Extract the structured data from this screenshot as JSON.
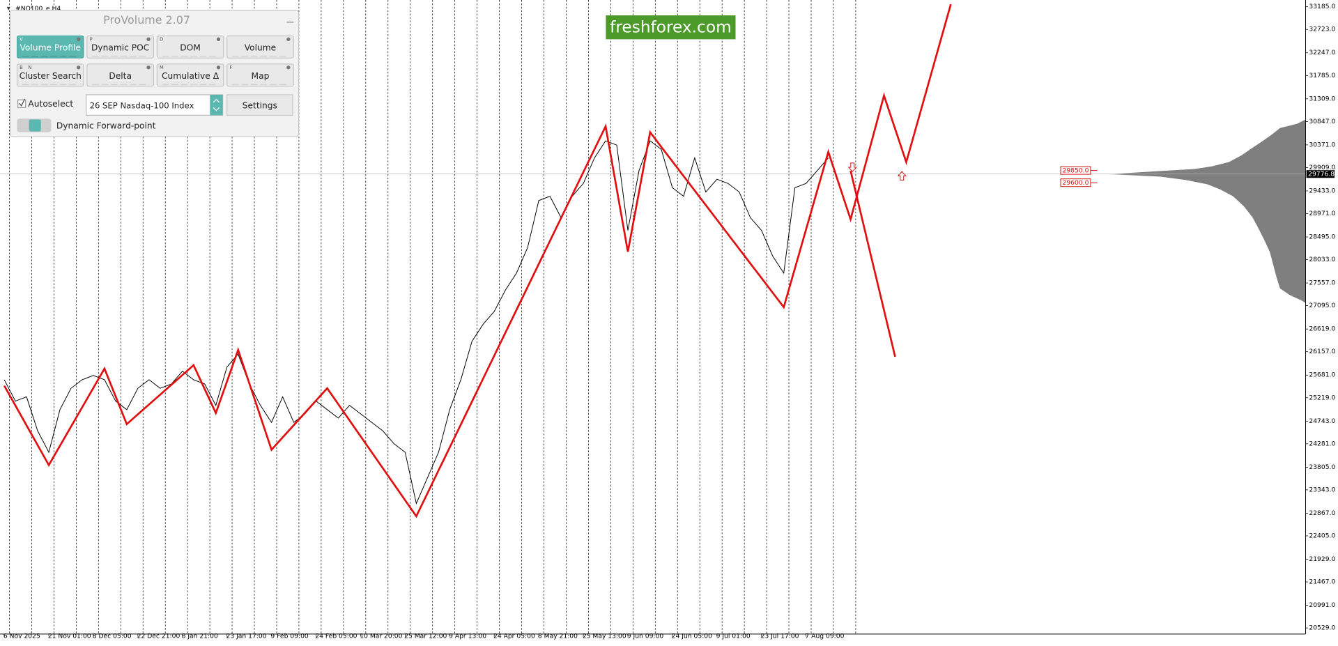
{
  "window": {
    "symbol": "#NQ100_e,H4"
  },
  "watermark": "freshforex.com",
  "panel": {
    "title": "ProVolume 2.07",
    "buttons": [
      {
        "label": "Volume Profile",
        "keys": [
          "V"
        ]
      },
      {
        "label": "Dynamic POC",
        "keys": [
          "P"
        ]
      },
      {
        "label": "DOM",
        "keys": [
          "D"
        ]
      },
      {
        "label": "Volume"
      },
      {
        "label": "Cluster Search",
        "keys": [
          "B",
          "N"
        ]
      },
      {
        "label": "Delta"
      },
      {
        "label": "Cumulative Δ",
        "keys": [
          "M"
        ]
      },
      {
        "label": "Map",
        "keys": [
          "F"
        ]
      }
    ],
    "autoselect": "Autoselect",
    "instrument": "26 SEP Nasdaq-100 Index",
    "settings": "Settings",
    "forward_point": "Dynamic Forward-point"
  },
  "chart_data": {
    "type": "line",
    "categories": [
      "6 Nov 2025",
      null,
      null,
      null,
      "21 Nov 01:00",
      null,
      null,
      null,
      "8 Dec 05:00",
      null,
      null,
      null,
      "22 Dec 21:00",
      null,
      null,
      null,
      "8 Jan 21:00",
      null,
      null,
      null,
      "23 Jan 17:00",
      null,
      null,
      null,
      "9 Feb 09:00",
      null,
      null,
      null,
      "24 Feb 05:00",
      null,
      null,
      null,
      "10 Mar 20:00",
      null,
      null,
      null,
      "25 Mar 12:00",
      null,
      null,
      null,
      "9 Apr 13:00",
      null,
      null,
      null,
      "24 Apr 05:00",
      null,
      null,
      null,
      "8 May 21:00",
      null,
      null,
      null,
      "25 May 13:00",
      null,
      null,
      null,
      "9 Jun 09:00",
      null,
      null,
      null,
      "24 Jun 05:00",
      null,
      null,
      null,
      "9 Jul 01:00",
      null,
      null,
      null,
      "23 Jul 17:00",
      null,
      null,
      null,
      "7 Aug 09:00",
      null,
      null,
      null,
      null,
      null,
      null,
      null,
      null,
      null,
      null,
      null,
      null,
      null
    ],
    "series": [
      {
        "color": "#000000",
        "values": [
          25586,
          25151,
          25238,
          24543,
          24108,
          24977,
          25412,
          25586,
          25673,
          25586,
          25151,
          24977,
          25412,
          25586,
          25412,
          25499,
          25760,
          25586,
          25499,
          25064,
          25847,
          26108,
          25499,
          25064,
          24717,
          25238,
          24717,
          24891,
          25151,
          24977,
          24804,
          25064,
          24891,
          24717,
          24543,
          24282,
          24108,
          23065,
          23587,
          24108,
          24977,
          25586,
          26368,
          26716,
          26977,
          27411,
          27759,
          28281,
          29237,
          29324,
          28889,
          29324,
          29585,
          30106,
          30454,
          30367,
          28628,
          29845,
          30454,
          30280,
          29498,
          29324,
          30106,
          29411,
          29671,
          29585,
          29411,
          28889,
          28628,
          28107,
          27759,
          29498,
          29585,
          29845,
          30106,
          null,
          null,
          null,
          null,
          null,
          null,
          null,
          null,
          null,
          null,
          null
        ]
      },
      {
        "color": "#e01010",
        "values": [
          25464,
          25060,
          24656,
          24252,
          23847,
          24240,
          24633,
          25026,
          25419,
          25812,
          25247,
          24682,
          24882,
          25082,
          25282,
          25482,
          25682,
          25882,
          25395,
          24908,
          25551,
          26194,
          25516,
          24838,
          24160,
          24411,
          24661,
          24911,
          25162,
          25412,
          25086,
          24760,
          24434,
          24108,
          23782,
          23456,
          23130,
          22804,
          23272,
          23740,
          24206,
          24673,
          25141,
          25609,
          26076,
          26544,
          27010,
          27477,
          27945,
          28413,
          28880,
          29348,
          29814,
          30282,
          30749,
          29471,
          28194,
          29411,
          30628,
          30330,
          30033,
          29737,
          29440,
          29143,
          28846,
          28548,
          28251,
          27954,
          27658,
          27361,
          27064,
          27855,
          28646,
          29437,
          30228,
          29541,
          28854,
          29694,
          30535,
          31375,
          30697,
          30019,
          30823,
          31627,
          32431,
          33235
        ]
      },
      {
        "color": "#e01010",
        "values": [
          null,
          null,
          null,
          null,
          null,
          null,
          null,
          null,
          null,
          null,
          null,
          null,
          null,
          null,
          null,
          null,
          null,
          null,
          null,
          null,
          null,
          null,
          null,
          null,
          null,
          null,
          null,
          null,
          null,
          null,
          null,
          null,
          null,
          null,
          null,
          null,
          null,
          null,
          null,
          null,
          null,
          null,
          null,
          null,
          null,
          null,
          null,
          null,
          null,
          null,
          null,
          null,
          null,
          null,
          null,
          null,
          null,
          null,
          null,
          null,
          null,
          null,
          null,
          null,
          null,
          null,
          null,
          null,
          null,
          null,
          null,
          null,
          null,
          null,
          null,
          null,
          29845,
          28898,
          27950,
          27003,
          26055,
          null,
          null,
          null,
          null,
          null
        ]
      }
    ],
    "ylim": [
      20440,
      33270
    ],
    "yticks": [
      {
        "value": 33185,
        "label": "33185.0"
      },
      {
        "value": 32723,
        "label": "32723.0"
      },
      {
        "value": 32247,
        "label": "32247.0"
      },
      {
        "value": 31785,
        "label": "31785.0"
      },
      {
        "value": 31309,
        "label": "31309.0"
      },
      {
        "value": 30847,
        "label": "30847.0"
      },
      {
        "value": 30371,
        "label": "30371.0"
      },
      {
        "value": 29909,
        "label": "29909.0"
      },
      {
        "value": 29433,
        "label": "29433.0"
      },
      {
        "value": 28971,
        "label": "28971.0"
      },
      {
        "value": 28495,
        "label": "28495.0"
      },
      {
        "value": 28033,
        "label": "28033.0"
      },
      {
        "value": 27557,
        "label": "27557.0"
      },
      {
        "value": 27095,
        "label": "27095.0"
      },
      {
        "value": 26619,
        "label": "26619.0"
      },
      {
        "value": 26157,
        "label": "26157.0"
      },
      {
        "value": 25681,
        "label": "25681.0"
      },
      {
        "value": 25219,
        "label": "25219.0"
      },
      {
        "value": 24743,
        "label": "24743.0"
      },
      {
        "value": 24281,
        "label": "24281.0"
      },
      {
        "value": 23805,
        "label": "23805.0"
      },
      {
        "value": 23343,
        "label": "23343.0"
      },
      {
        "value": 22867,
        "label": "22867.0"
      },
      {
        "value": 22405,
        "label": "22405.0"
      },
      {
        "value": 21929,
        "label": "21929.0"
      },
      {
        "value": 21467,
        "label": "21467.0"
      },
      {
        "value": 20991,
        "label": "20991.0"
      },
      {
        "value": 20529,
        "label": "20529.0"
      }
    ],
    "current_price": {
      "value": 29776.8,
      "label": "29776.8"
    },
    "levels": [
      {
        "value": 29850,
        "label": "29850.0"
      },
      {
        "value": 29600,
        "label": "29600.0"
      }
    ]
  }
}
